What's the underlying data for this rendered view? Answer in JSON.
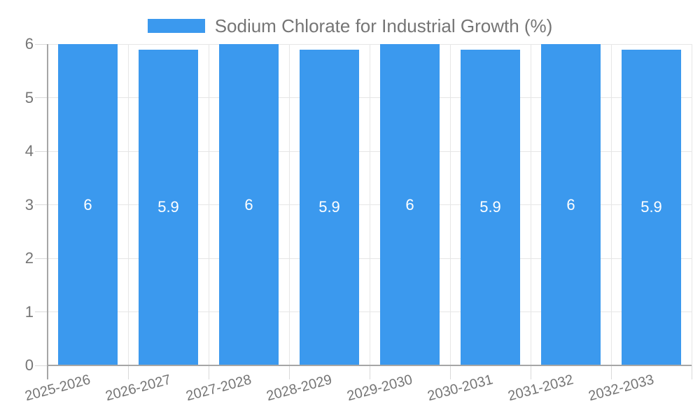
{
  "legend": {
    "label": "Sodium Chlorate for Industrial Growth (%)"
  },
  "colors": {
    "bar": "#3b99ee",
    "grid": "#e6e6e6",
    "tick": "#d9d9d9",
    "axis": "#a6a6a6",
    "text": "#757575",
    "bar_label": "#ffffff",
    "background": "#ffffff"
  },
  "chart_data": {
    "type": "bar",
    "title": "Sodium Chlorate for Industrial Growth (%)",
    "categories": [
      "2025-2026",
      "2026-2027",
      "2027-2028",
      "2028-2029",
      "2029-2030",
      "2030-2031",
      "2031-2032",
      "2032-2033"
    ],
    "values": [
      6,
      5.9,
      6,
      5.9,
      6,
      5.9,
      6,
      5.9
    ],
    "bar_labels": [
      "6",
      "5.9",
      "6",
      "5.9",
      "6",
      "5.9",
      "6",
      "5.9"
    ],
    "y_ticks": [
      0,
      1,
      2,
      3,
      4,
      5,
      6
    ],
    "ylim": [
      0,
      6
    ],
    "xlabel": "",
    "ylabel": "",
    "grid": true,
    "legend_position": "top",
    "x_tick_rotation_deg": -15,
    "bar_label_position": "center"
  }
}
